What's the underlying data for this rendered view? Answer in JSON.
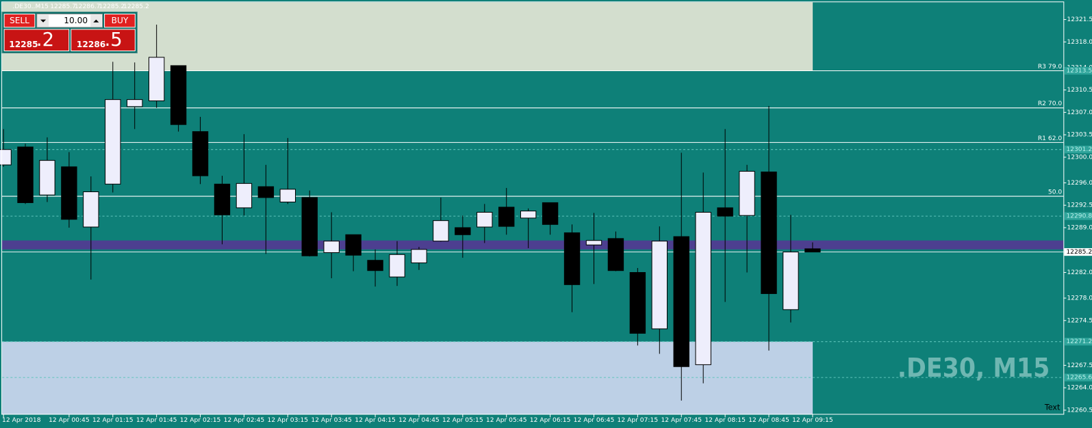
{
  "trade_panel": {
    "sell": "SELL",
    "buy": "BUY",
    "volume": "10.00",
    "bid": "12285",
    "bid_frac": ".2",
    "ask": "12286",
    "ask_frac": ".5"
  },
  "chart_data": {
    "type": "candlestick",
    "symbol": ".DE30..M15",
    "watermark": ".DE30, M15",
    "corner_text": "Text",
    "categories": [
      "12 Apr 2018",
      null,
      null,
      "12 Apr 00:45",
      null,
      "12 Apr 01:15",
      null,
      "12 Apr 01:45",
      null,
      "12 Apr 02:15",
      null,
      "12 Apr 02:45",
      null,
      "12 Apr 03:15",
      null,
      "12 Apr 03:45",
      null,
      "12 Apr 04:15",
      null,
      "12 Apr 04:45",
      null,
      "12 Apr 05:15",
      null,
      "12 Apr 05:45",
      null,
      "12 Apr 06:15",
      null,
      "12 Apr 06:45",
      null,
      "12 Apr 07:15",
      null,
      "12 Apr 07:45",
      null,
      "12 Apr 08:15",
      null,
      "12 Apr 08:45",
      null,
      "12 Apr 09:15"
    ],
    "open": [
      12298.8,
      12301.6,
      12294.1,
      12298.5,
      12289.1,
      12295.8,
      12307.9,
      12308.8,
      12314.3,
      12304.0,
      12295.8,
      12292.1,
      12295.4,
      12293.0,
      12293.7,
      12285.1,
      12287.9,
      12283.9,
      12281.3,
      12283.5,
      12286.9,
      12289.0,
      12289.1,
      12292.2,
      12290.5,
      12292.9,
      12288.2,
      12286.3,
      12287.3,
      12282.0,
      12273.2,
      12287.6,
      12267.6,
      12292.1,
      12290.9,
      12297.7,
      12276.2,
      12285.7
    ],
    "high": [
      12304.4,
      12302.1,
      12303.1,
      12300.8,
      12297.0,
      12314.9,
      12314.8,
      12320.7,
      12314.3,
      12306.3,
      12297.1,
      12303.6,
      12298.8,
      12303.0,
      12294.8,
      12291.4,
      12287.9,
      12285.6,
      12286.9,
      12286.0,
      12293.7,
      12290.9,
      12292.7,
      12295.2,
      12292.0,
      12292.9,
      12289.5,
      12291.3,
      12288.4,
      12282.7,
      12289.2,
      12300.7,
      12297.6,
      12304.4,
      12298.8,
      12308.0,
      12291.0,
      12286.7
    ],
    "low": [
      12298.5,
      12292.7,
      12293.0,
      12289.0,
      12280.9,
      12294.5,
      12304.4,
      12307.7,
      12304.0,
      12295.8,
      12286.4,
      12290.9,
      12284.9,
      12292.7,
      12284.5,
      12281.1,
      12282.2,
      12279.8,
      12279.9,
      12282.4,
      12286.8,
      12284.3,
      12286.6,
      12287.9,
      12285.8,
      12287.9,
      12275.8,
      12280.2,
      12282.2,
      12270.6,
      12269.3,
      12262.0,
      12264.7,
      12277.4,
      12282.0,
      12269.8,
      12274.2,
      12285.2
    ],
    "close": [
      12301.2,
      12292.9,
      12299.5,
      12290.3,
      12294.6,
      12309.0,
      12309.0,
      12315.6,
      12305.1,
      12297.1,
      12291.0,
      12295.9,
      12293.7,
      12295.0,
      12284.6,
      12286.9,
      12284.7,
      12282.3,
      12284.8,
      12285.6,
      12290.1,
      12287.9,
      12291.4,
      12289.2,
      12291.6,
      12289.5,
      12280.1,
      12287.0,
      12282.3,
      12272.5,
      12286.9,
      12267.3,
      12291.4,
      12290.8,
      12297.8,
      12278.7,
      12285.2,
      12285.2
    ],
    "up_color": "#eeeefc",
    "down_color": "#000000",
    "background": "#0e8078",
    "ylim": [
      12259.8,
      12324.2
    ],
    "yticks": [
      12321.5,
      {
        "value": 12318,
        "label": "12318.0"
      },
      {
        "value": 12314,
        "label": "12314.0"
      },
      12310.5,
      {
        "value": 12307,
        "label": "12307.0"
      },
      12303.5,
      {
        "value": 12300,
        "label": "12300.0"
      },
      {
        "value": 12296,
        "label": "12296.0"
      },
      12292.5,
      {
        "value": 12289,
        "label": "12289.0"
      },
      {
        "value": 12282,
        "label": "12282.0"
      },
      {
        "value": 12278,
        "label": "12278.0"
      },
      12274.5,
      12267.5,
      {
        "value": 12264,
        "label": "12264.0"
      },
      12260.5
    ],
    "zones": [
      {
        "from": 12313.5,
        "to": 12324.2,
        "color": "#d3dece",
        "extend_right": false
      },
      {
        "from": 12259.8,
        "to": 12271.2,
        "color": "#bdd0e6",
        "extend_right": false
      },
      {
        "from": 12285.6,
        "to": 12287.0,
        "color": "#4d3f90",
        "extend_right": true
      }
    ],
    "levels": [
      {
        "label": "R3 79.0",
        "value": 12313.5
      },
      {
        "label": "R2 70.0",
        "value": 12307.7
      },
      {
        "label": "R1 62.0",
        "value": 12302.3
      },
      {
        "label": "50.0",
        "value": 12293.9
      }
    ],
    "price_markers": [
      12313.5,
      12301.2,
      12290.8,
      12271.2,
      12265.6
    ],
    "bid": 12285.2
  }
}
